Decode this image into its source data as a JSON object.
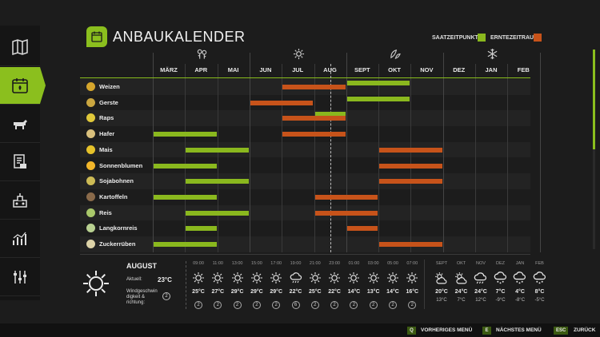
{
  "title": "ANBAUKALENDER",
  "legend": {
    "sow_label": "SAATZEITPUNKT",
    "harvest_label": "ERNTEZEITRAUM",
    "sow_color": "#8ab81e",
    "harvest_color": "#c7531a"
  },
  "months": [
    "MÄRZ",
    "APR",
    "MAI",
    "JUN",
    "JUL",
    "AUG",
    "SEPT",
    "OKT",
    "NOV",
    "DEZ",
    "JAN",
    "FEB"
  ],
  "season_icons": [
    "spring-flower-icon",
    "summer-sun-icon",
    "autumn-leaves-icon",
    "winter-snowflake-icon"
  ],
  "chart_data": {
    "type": "gantt",
    "categories": [
      "MÄRZ",
      "APR",
      "MAI",
      "JUN",
      "JUL",
      "AUG",
      "SEPT",
      "OKT",
      "NOV",
      "DEZ",
      "JAN",
      "FEB"
    ],
    "current_marker_month": "AUG",
    "crops": [
      {
        "name": "Weizen",
        "sow": [
          [
            "SEPT",
            "OKT"
          ]
        ],
        "harvest": [
          [
            "JUL",
            "AUG"
          ]
        ]
      },
      {
        "name": "Gerste",
        "sow": [
          [
            "SEPT",
            "OKT"
          ]
        ],
        "harvest": [
          [
            "JUN",
            "JUL"
          ]
        ]
      },
      {
        "name": "Raps",
        "sow": [
          [
            "AUG",
            "AUG"
          ]
        ],
        "harvest": [
          [
            "JUL",
            "AUG"
          ]
        ]
      },
      {
        "name": "Hafer",
        "sow": [
          [
            "MÄRZ",
            "APR"
          ]
        ],
        "harvest": [
          [
            "JUL",
            "AUG"
          ]
        ]
      },
      {
        "name": "Mais",
        "sow": [
          [
            "APR",
            "MAI"
          ]
        ],
        "harvest": [
          [
            "OKT",
            "NOV"
          ]
        ]
      },
      {
        "name": "Sonnenblumen",
        "sow": [
          [
            "MÄRZ",
            "APR"
          ]
        ],
        "harvest": [
          [
            "OKT",
            "NOV"
          ]
        ]
      },
      {
        "name": "Sojabohnen",
        "sow": [
          [
            "APR",
            "MAI"
          ]
        ],
        "harvest": [
          [
            "OKT",
            "NOV"
          ]
        ]
      },
      {
        "name": "Kartoffeln",
        "sow": [
          [
            "MÄRZ",
            "APR"
          ]
        ],
        "harvest": [
          [
            "AUG",
            "SEPT"
          ]
        ]
      },
      {
        "name": "Reis",
        "sow": [
          [
            "APR",
            "MAI"
          ]
        ],
        "harvest": [
          [
            "AUG",
            "SEPT"
          ]
        ]
      },
      {
        "name": "Langkornreis",
        "sow": [
          [
            "APR",
            "APR"
          ]
        ],
        "harvest": [
          [
            "SEPT",
            "SEPT"
          ]
        ]
      },
      {
        "name": "Zuckerrüben",
        "sow": [
          [
            "MÄRZ",
            "APR"
          ]
        ],
        "harvest": [
          [
            "OKT",
            "NOV"
          ]
        ]
      }
    ]
  },
  "weather": {
    "month": "AUGUST",
    "current_label": "Aktuell:",
    "current_temp": "23°C",
    "wind_label": "Windgeschwin digkeit & richtung:",
    "wind_value": "2",
    "hourly": [
      {
        "time": "09:00",
        "icon": "sun-icon",
        "temp": "25°C",
        "wind": "2"
      },
      {
        "time": "11:00",
        "icon": "sun-icon",
        "temp": "27°C",
        "wind": "2"
      },
      {
        "time": "13:00",
        "icon": "sun-icon",
        "temp": "29°C",
        "wind": "2"
      },
      {
        "time": "15:00",
        "icon": "sun-icon",
        "temp": "29°C",
        "wind": "2"
      },
      {
        "time": "17:00",
        "icon": "sun-icon",
        "temp": "29°C",
        "wind": "2"
      },
      {
        "time": "19:00",
        "icon": "cloud-rain-icon",
        "temp": "22°C",
        "wind": "6"
      },
      {
        "time": "21:00",
        "icon": "sun-icon",
        "temp": "25°C",
        "wind": "2"
      },
      {
        "time": "23:00",
        "icon": "sun-icon",
        "temp": "22°C",
        "wind": "2"
      },
      {
        "time": "01:00",
        "icon": "sun-icon",
        "temp": "14°C",
        "wind": "2"
      },
      {
        "time": "03:00",
        "icon": "sun-icon",
        "temp": "13°C",
        "wind": "2"
      },
      {
        "time": "05:00",
        "icon": "sun-icon",
        "temp": "14°C",
        "wind": "2"
      },
      {
        "time": "07:00",
        "icon": "sun-icon",
        "temp": "16°C",
        "wind": "2"
      }
    ],
    "monthly": [
      {
        "month": "SEPT",
        "icon": "partly-cloudy-icon",
        "hi": "20°C",
        "lo": "13°C"
      },
      {
        "month": "OKT",
        "icon": "partly-cloudy-icon",
        "hi": "24°C",
        "lo": "7°C"
      },
      {
        "month": "NOV",
        "icon": "cloud-rain-icon",
        "hi": "24°C",
        "lo": "12°C"
      },
      {
        "month": "DEZ",
        "icon": "cloud-snow-icon",
        "hi": "7°C",
        "lo": "-9°C"
      },
      {
        "month": "JAN",
        "icon": "cloud-snow-icon",
        "hi": "4°C",
        "lo": "-8°C"
      },
      {
        "month": "FEB",
        "icon": "cloud-snow-icon",
        "hi": "8°C",
        "lo": "-5°C"
      }
    ]
  },
  "footer": [
    {
      "key": "Q",
      "label": "VORHERIGES MENÜ"
    },
    {
      "key": "E",
      "label": "NÄCHSTES MENÜ"
    },
    {
      "key": "ESC",
      "label": "ZURÜCK"
    }
  ],
  "sidebar": [
    "map-icon",
    "calendar-icon",
    "livestock-icon",
    "contracts-icon",
    "production-icon",
    "statistics-icon",
    "settings-icon"
  ]
}
